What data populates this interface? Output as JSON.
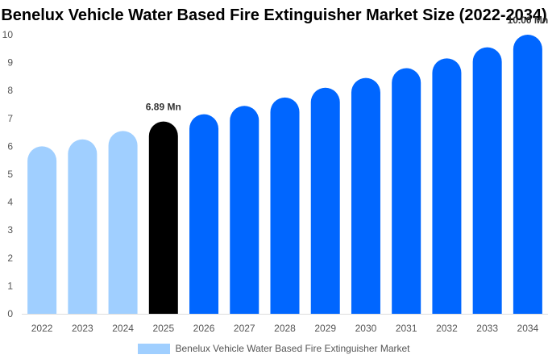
{
  "chart_data": {
    "type": "bar",
    "title": "Benelux Vehicle Water Based Fire Extinguisher Market Size (2022-2034)",
    "xlabel": "",
    "ylabel": "",
    "ylim": [
      0,
      10
    ],
    "yticks": [
      0,
      1,
      2,
      3,
      4,
      5,
      6,
      7,
      8,
      9,
      10
    ],
    "categories": [
      "2022",
      "2023",
      "2024",
      "2025",
      "2026",
      "2027",
      "2028",
      "2029",
      "2030",
      "2031",
      "2032",
      "2033",
      "2034"
    ],
    "series": [
      {
        "name": "Benelux Vehicle Water Based Fire Extinguisher Market",
        "values": [
          6.0,
          6.25,
          6.55,
          6.89,
          7.15,
          7.45,
          7.75,
          8.1,
          8.45,
          8.8,
          9.15,
          9.55,
          10.0
        ]
      }
    ],
    "data_labels": [
      {
        "category": "2025",
        "text": "6.89 Mn"
      },
      {
        "category": "2034",
        "text": "10.00 Mn"
      }
    ],
    "bar_colors": [
      "#a0cfff",
      "#a0cfff",
      "#a0cfff",
      "#000000",
      "#0066ff",
      "#0066ff",
      "#0066ff",
      "#0066ff",
      "#0066ff",
      "#0066ff",
      "#0066ff",
      "#0066ff",
      "#0066ff"
    ],
    "legend": {
      "position": "bottom",
      "color": "#a0cfff"
    },
    "grid": false
  }
}
